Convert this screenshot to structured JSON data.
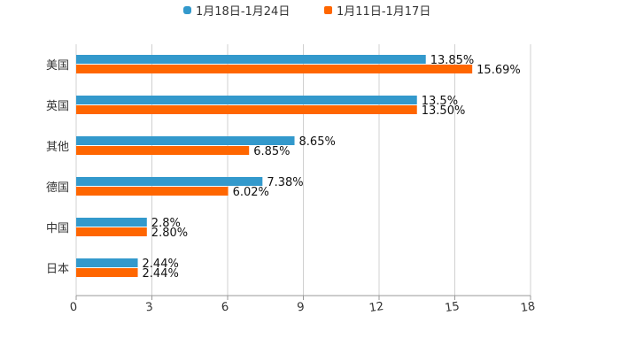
{
  "chart_data": {
    "type": "bar",
    "orientation": "horizontal",
    "title": "",
    "xlabel": "",
    "ylabel": "",
    "categories": [
      "美国",
      "英国",
      "其他",
      "德国",
      "中国",
      "日本"
    ],
    "xlim": [
      0,
      18
    ],
    "xticks": [
      "0",
      "3",
      "6",
      "9",
      "12",
      "15",
      "18"
    ],
    "tick_values": [
      0,
      3,
      6,
      9,
      12,
      15,
      18
    ],
    "grid": true,
    "legend_position": "top-center",
    "series": [
      {
        "name": "1月18日-1月24日",
        "color": "#3399CC",
        "values": [
          13.85,
          13.5,
          8.65,
          7.38,
          2.8,
          2.44
        ],
        "labels": [
          "13.85%",
          "13.5%",
          "8.65%",
          "7.38%",
          "2.8%",
          "2.44%"
        ]
      },
      {
        "name": "1月11日-1月17日",
        "color": "#FF6600",
        "values": [
          15.69,
          13.5,
          6.85,
          6.02,
          2.8,
          2.44
        ],
        "labels": [
          "15.69%",
          "13.50%",
          "6.85%",
          "6.02%",
          "2.80%",
          "2.44%"
        ]
      }
    ]
  }
}
